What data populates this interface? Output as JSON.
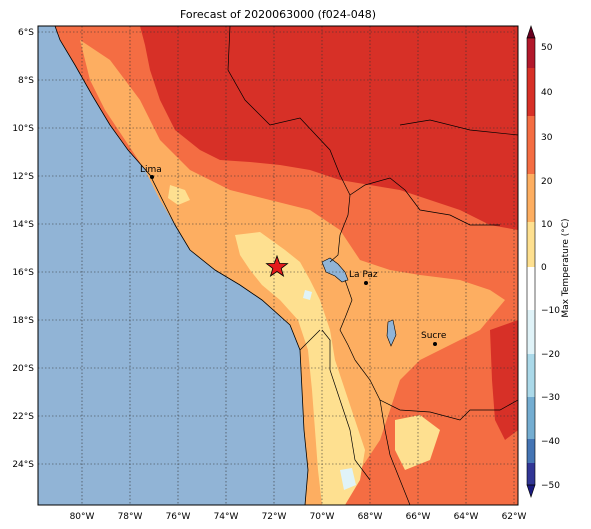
{
  "title": "Forecast of 2020063000 (f024-048)",
  "map": {
    "lon_ticks": [
      "80°W",
      "78°W",
      "76°W",
      "74°W",
      "72°W",
      "70°W",
      "68°W",
      "66°W",
      "64°W",
      "62°W"
    ],
    "lat_ticks": [
      "6°S",
      "8°S",
      "10°S",
      "12°S",
      "14°S",
      "16°S",
      "18°S",
      "20°S",
      "22°S",
      "24°S"
    ],
    "cities": [
      {
        "name": "Lima"
      },
      {
        "name": "La Paz"
      },
      {
        "name": "Sucre"
      }
    ],
    "colors": {
      "ocean": "#91b4d6",
      "above_40": "#d73027",
      "range_30_40": "#d73027",
      "range_20_30": "#f46d43",
      "range_10_20": "#fdae61",
      "range_0_10": "#fee090",
      "range_neg10_0": "#e0f3f8"
    }
  },
  "colorbar": {
    "label": "Max Temperature (°C)",
    "ticks": [
      "50",
      "40",
      "30",
      "20",
      "10",
      "0",
      "−10",
      "−20",
      "−30",
      "−40",
      "−50"
    ],
    "colors": [
      "#67001f",
      "#b2182b",
      "#d73027",
      "#f46d43",
      "#fdae61",
      "#fee090",
      "#ffffff",
      "#e0f3f8",
      "#abd9e9",
      "#74add1",
      "#4575b4",
      "#313695",
      "#1a1a80"
    ]
  }
}
